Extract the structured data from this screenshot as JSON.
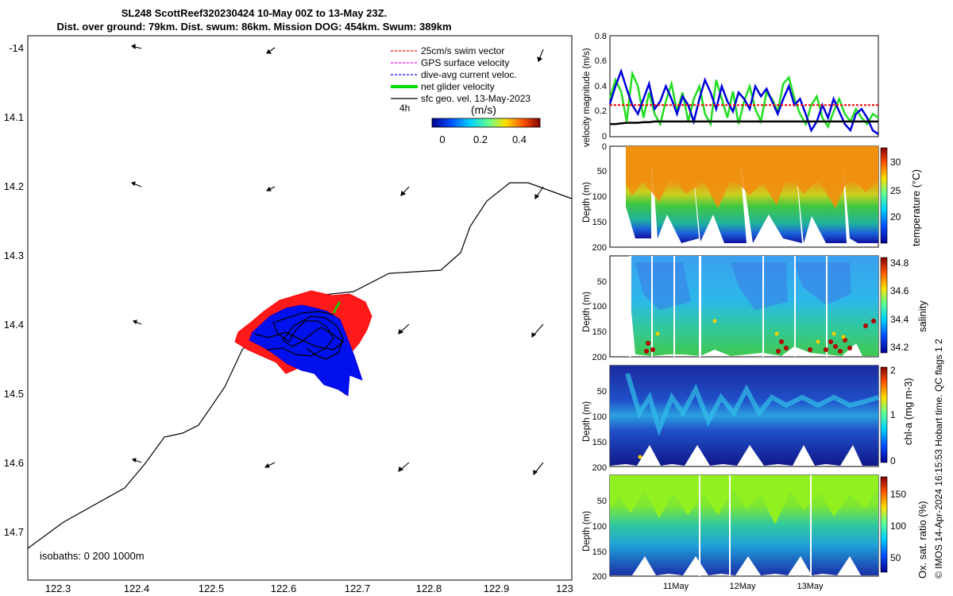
{
  "header": {
    "title_line1": "SL248 ScottReef320230424 10-May 00Z to 13-May 23Z.",
    "title_line2": "Dist. over ground: 79km. Dist. swum: 86km. Mission DOG: 454km. Swum: 389km"
  },
  "map": {
    "legend": [
      {
        "label": "25cm/s swim vector",
        "color": "#ff0000"
      },
      {
        "label": "GPS surface velocity",
        "color": "#ff00ff"
      },
      {
        "label": "dive-avg current veloc.",
        "color": "#0000ff"
      },
      {
        "label": "net glider velocity",
        "color": "#00ee00"
      },
      {
        "label": "sfc geo. vel. 13-May-2023",
        "color": "#000000"
      }
    ],
    "scale_label": "4h",
    "colorbar_title": "(m/s)",
    "colorbar_ticks": [
      "0",
      "0.2",
      "0.4"
    ],
    "isobaths_label": "isobaths: 0   200  1000m",
    "x_ticks": [
      "122.3",
      "122.4",
      "122.5",
      "122.6",
      "122.7",
      "122.8",
      "122.9",
      "123"
    ],
    "y_ticks": [
      "-14",
      "14.1",
      "14.2",
      "14.3",
      "14.4",
      "14.5",
      "14.6",
      "14.7"
    ]
  },
  "chart_data": [
    {
      "type": "line",
      "title": "velocity magnitude",
      "ylabel": "velocity magnitude (m/s)",
      "ylim": [
        0,
        0.8
      ],
      "y_ticks": [
        "0",
        "0.2",
        "0.4",
        "0.6",
        "0.8"
      ],
      "x": [
        0,
        1,
        2,
        3,
        4,
        5,
        6,
        7,
        8,
        9,
        10,
        11,
        12,
        13,
        14,
        15,
        16,
        17,
        18,
        19,
        20,
        21,
        22,
        23,
        24,
        25,
        26,
        27,
        28,
        29,
        30,
        31,
        32,
        33,
        34,
        35,
        36,
        37,
        38,
        39,
        40,
        41,
        42,
        43,
        44,
        45,
        46,
        47,
        48
      ],
      "series": [
        {
          "name": "net glider velocity",
          "color": "#22dd22",
          "values": [
            0.3,
            0.45,
            0.36,
            0.12,
            0.5,
            0.4,
            0.15,
            0.35,
            0.18,
            0.1,
            0.28,
            0.42,
            0.2,
            0.35,
            0.12,
            0.3,
            0.4,
            0.18,
            0.1,
            0.45,
            0.3,
            0.15,
            0.36,
            0.1,
            0.28,
            0.4,
            0.22,
            0.12,
            0.35,
            0.3,
            0.2,
            0.42,
            0.47,
            0.3,
            0.18,
            0.1,
            0.25,
            0.32,
            0.15,
            0.08,
            0.2,
            0.3,
            0.18,
            0.12,
            0.22,
            0.15,
            0.1,
            0.18,
            0.15
          ]
        },
        {
          "name": "dive-avg current veloc.",
          "color": "#0000dd",
          "values": [
            0.26,
            0.4,
            0.52,
            0.38,
            0.25,
            0.18,
            0.3,
            0.42,
            0.22,
            0.28,
            0.4,
            0.3,
            0.18,
            0.32,
            0.25,
            0.12,
            0.3,
            0.45,
            0.35,
            0.22,
            0.4,
            0.28,
            0.2,
            0.35,
            0.3,
            0.22,
            0.4,
            0.32,
            0.38,
            0.28,
            0.18,
            0.3,
            0.4,
            0.25,
            0.3,
            0.18,
            0.05,
            0.12,
            0.25,
            0.15,
            0.3,
            0.2,
            0.1,
            0.05,
            0.18,
            0.22,
            0.15,
            0.05,
            0.02
          ]
        },
        {
          "name": "25cm/s swim vector",
          "color": "#ff0000",
          "dashed": true,
          "values": [
            0.25,
            0.25,
            0.25,
            0.25,
            0.25,
            0.25,
            0.25,
            0.25,
            0.25,
            0.25,
            0.25,
            0.25,
            0.25,
            0.25,
            0.25,
            0.25,
            0.25,
            0.25,
            0.25,
            0.25,
            0.25,
            0.25,
            0.25,
            0.25,
            0.25,
            0.25,
            0.25,
            0.25,
            0.25,
            0.25,
            0.25,
            0.25,
            0.25,
            0.25,
            0.25,
            0.25,
            0.25,
            0.25,
            0.25,
            0.25,
            0.25,
            0.25,
            0.25,
            0.25,
            0.25,
            0.25,
            0.25,
            0.25,
            0.25
          ]
        },
        {
          "name": "sfc geo. vel.",
          "color": "#000000",
          "values": [
            0.1,
            0.1,
            0.105,
            0.11,
            0.11,
            0.11,
            0.115,
            0.115,
            0.12,
            0.12,
            0.12,
            0.12,
            0.12,
            0.12,
            0.12,
            0.12,
            0.12,
            0.12,
            0.12,
            0.12,
            0.12,
            0.12,
            0.12,
            0.12,
            0.12,
            0.12,
            0.12,
            0.12,
            0.12,
            0.12,
            0.12,
            0.12,
            0.12,
            0.12,
            0.12,
            0.12,
            0.12,
            0.12,
            0.12,
            0.12,
            0.12,
            0.12,
            0.12,
            0.12,
            0.12,
            0.12,
            0.12,
            0.12,
            0.12
          ]
        }
      ]
    },
    {
      "type": "heatmap",
      "variable": "temperature",
      "ylabel": "Depth (m)",
      "colorbar_label": "temperature (°C)",
      "colorbar_ticks": [
        "20",
        "25",
        "30"
      ],
      "clim": [
        16,
        32
      ],
      "depth_ticks": [
        "0",
        "50",
        "100",
        "150",
        "200"
      ]
    },
    {
      "type": "heatmap",
      "variable": "salinity",
      "ylabel": "Depth (m)",
      "colorbar_label": "salinity",
      "colorbar_ticks": [
        "34.2",
        "34.4",
        "34.6",
        "34.8"
      ],
      "clim": [
        34.1,
        34.8
      ],
      "depth_ticks": [
        "0",
        "50",
        "100",
        "150",
        "200"
      ]
    },
    {
      "type": "heatmap",
      "variable": "chl-a",
      "ylabel": "Depth (m)",
      "colorbar_label": "chl-a (mg m-3)",
      "colorbar_ticks": [
        "0",
        "1",
        "2"
      ],
      "clim": [
        0,
        2
      ],
      "depth_ticks": [
        "0",
        "50",
        "100",
        "150",
        "200"
      ]
    },
    {
      "type": "heatmap",
      "variable": "oxygen",
      "ylabel": "Depth (m)",
      "colorbar_label": "Ox. sat. ratio (%)",
      "colorbar_ticks": [
        "50",
        "100",
        "150"
      ],
      "clim": [
        25,
        175
      ],
      "depth_ticks": [
        "0",
        "50",
        "100",
        "150",
        "200"
      ],
      "x_ticks": [
        "11May",
        "12May",
        "13May"
      ]
    }
  ],
  "footer": {
    "credit": "© IMOS 14-Apr-2024 16:15:53 Hobart time. QC flags 1  2"
  },
  "colors": {
    "temperature_scale": [
      "#1010a0",
      "#1a60d8",
      "#20b0c0",
      "#30c860",
      "#a8d820",
      "#f0a000",
      "#e06000",
      "#8a0000"
    ],
    "velocity_scale": [
      "#00008f",
      "#0050ff",
      "#00d0ff",
      "#60ff90",
      "#ffe000",
      "#ff5000",
      "#800000"
    ]
  }
}
